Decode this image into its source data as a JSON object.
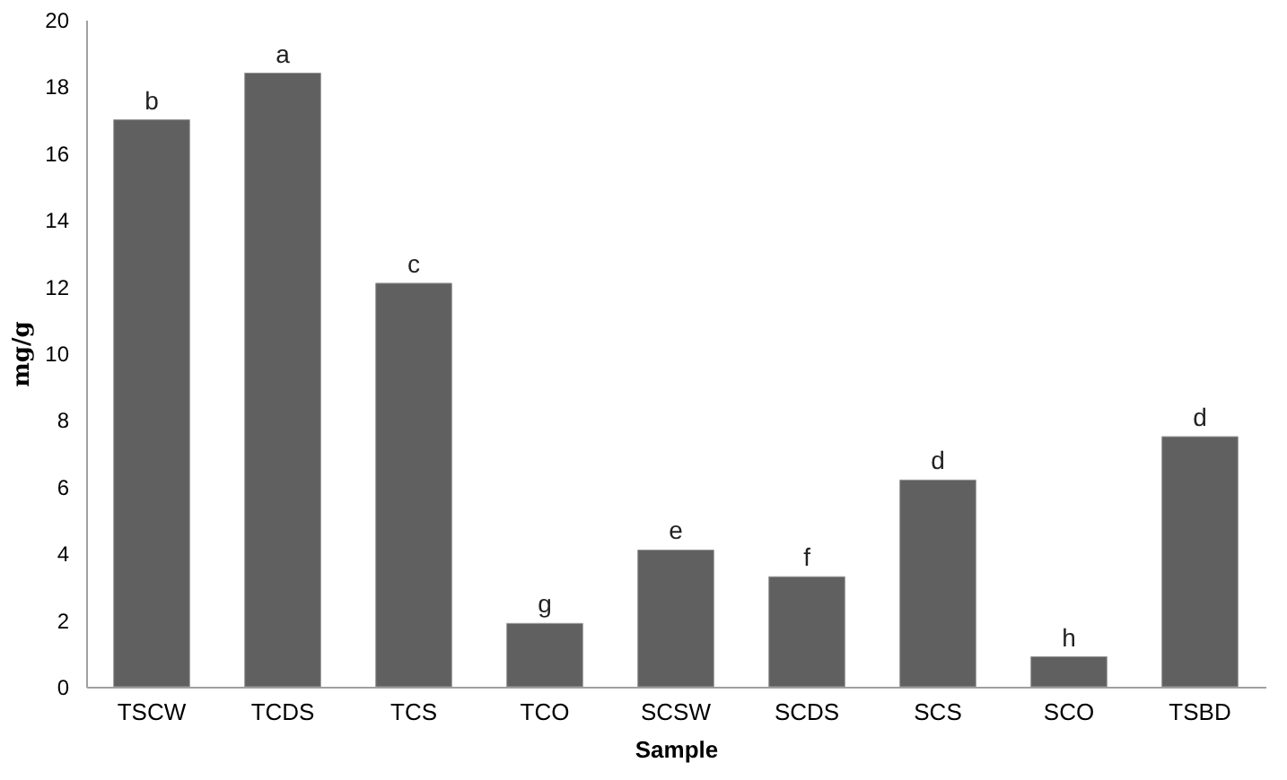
{
  "chart_data": {
    "type": "bar",
    "xlabel": "Sample",
    "ylabel": "mg/g",
    "categories": [
      "TSCW",
      "TCDS",
      "TCS",
      "TCO",
      "SCSW",
      "SCDS",
      "SCS",
      "SCO",
      "TSBD"
    ],
    "values": [
      17.0,
      18.4,
      12.1,
      1.9,
      4.1,
      3.3,
      6.2,
      0.9,
      7.5
    ],
    "value_labels": [
      "b",
      "a",
      "c",
      "g",
      "e",
      "f",
      "d",
      "h",
      "d"
    ],
    "color": "#606060",
    "ylim": [
      0,
      20
    ],
    "yticks": [
      0,
      2,
      4,
      6,
      8,
      10,
      12,
      14,
      16,
      18,
      20
    ],
    "grid": false
  }
}
